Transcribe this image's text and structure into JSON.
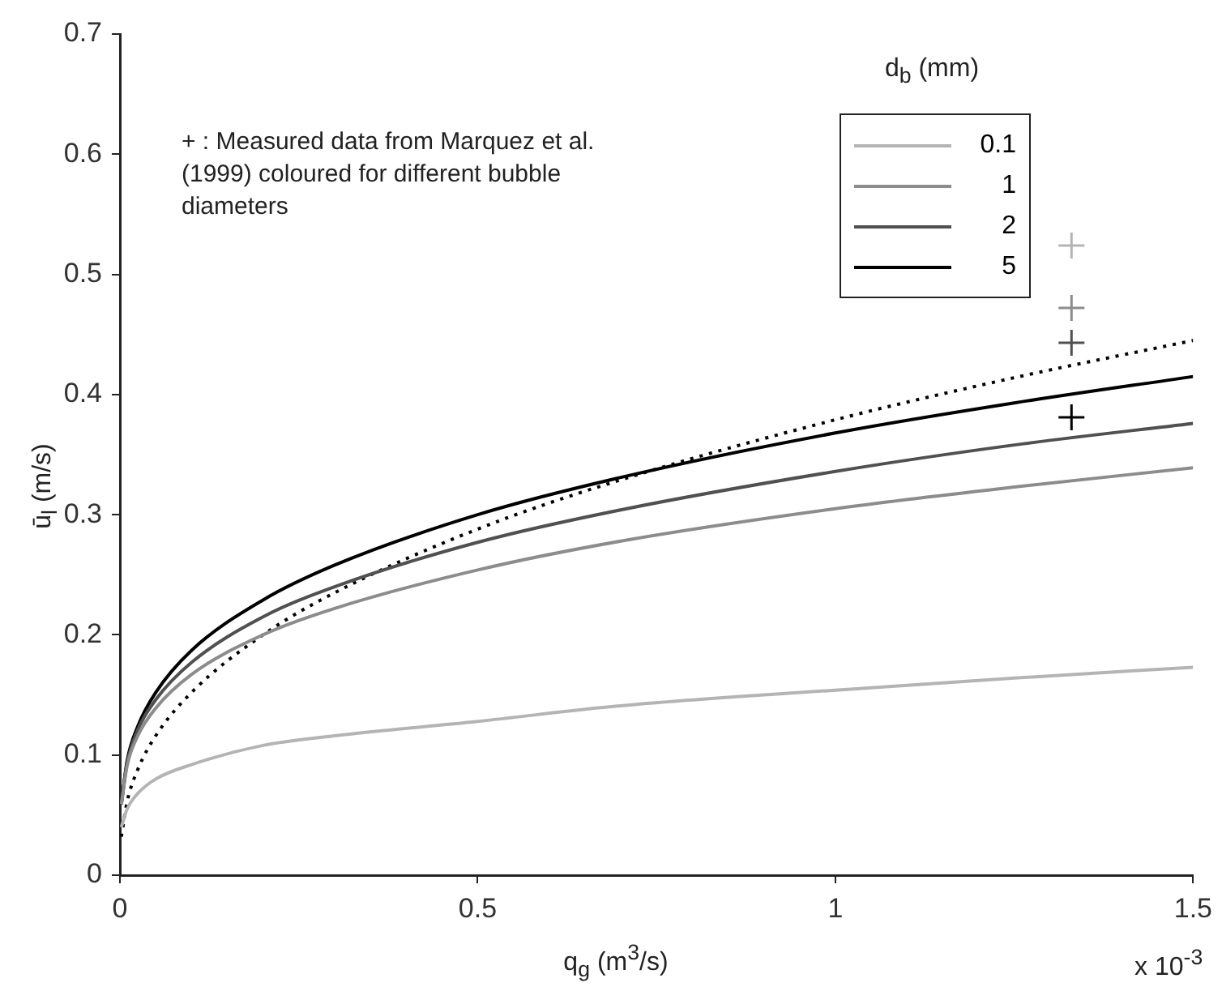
{
  "chart_data": {
    "type": "line",
    "xlabel": "q$_{g}$ (m$^{3}$/s)",
    "ylabel": "ū$_{l}$ (m/s)",
    "legend_title": "d$_{b}$ (mm)",
    "legend": "top right",
    "grid": false,
    "xlim": [
      0,
      1.5
    ],
    "ylim": [
      0,
      0.7
    ],
    "xticks": [
      0,
      0.5,
      1,
      1.5
    ],
    "yticks": [
      0,
      0.1,
      0.2,
      0.3,
      0.4,
      0.5,
      0.6,
      0.7
    ],
    "annotations": [
      "+ : Measured data from Marquez et al. (1999) coloured for different bubble diameters",
      "x 10$^{-3}$"
    ],
    "series": [
      {
        "name": "0.1",
        "color": "#b4b4b4",
        "x": [
          0.002,
          0.01,
          0.025,
          0.05,
          0.1,
          0.2,
          0.3,
          0.5,
          0.7,
          1,
          1.25,
          1.5
        ],
        "values": [
          0.04,
          0.055,
          0.068,
          0.08,
          0.092,
          0.108,
          0.116,
          0.128,
          0.141,
          0.154,
          0.164,
          0.173
        ]
      },
      {
        "name": "1",
        "color": "#8c8c8c",
        "x": [
          0.002,
          0.01,
          0.025,
          0.05,
          0.1,
          0.2,
          0.3,
          0.5,
          0.7,
          1,
          1.25,
          1.5
        ],
        "values": [
          0.059,
          0.091,
          0.116,
          0.139,
          0.167,
          0.2,
          0.222,
          0.254,
          0.278,
          0.305,
          0.323,
          0.339
        ]
      },
      {
        "name": "2",
        "color": "#505050",
        "x": [
          0.002,
          0.01,
          0.025,
          0.05,
          0.1,
          0.2,
          0.3,
          0.5,
          0.7,
          1,
          1.25,
          1.5
        ],
        "values": [
          0.06,
          0.093,
          0.121,
          0.146,
          0.177,
          0.215,
          0.24,
          0.277,
          0.304,
          0.336,
          0.358,
          0.376
        ]
      },
      {
        "name": "5",
        "color": "#000000",
        "x": [
          0.002,
          0.01,
          0.025,
          0.05,
          0.1,
          0.2,
          0.3,
          0.5,
          0.7,
          1,
          1.25,
          1.5
        ],
        "values": [
          0.059,
          0.095,
          0.124,
          0.152,
          0.187,
          0.229,
          0.258,
          0.3,
          0.331,
          0.368,
          0.393,
          0.415
        ]
      },
      {
        "color": "#000000",
        "line_style": "dotted",
        "x": [
          0.002,
          0.01,
          0.025,
          0.05,
          0.1,
          0.2,
          0.3,
          0.5,
          0.7,
          1,
          1.25,
          1.5
        ],
        "values": [
          0.032,
          0.061,
          0.088,
          0.116,
          0.152,
          0.2,
          0.235,
          0.288,
          0.329,
          0.379,
          0.414,
          0.445
        ]
      },
      {
        "type": "scatter",
        "marker": "cross",
        "x": [
          1.33,
          1.33,
          1.33,
          1.33
        ],
        "values": [
          0.524,
          0.472,
          0.443,
          0.381
        ],
        "colors": [
          "#b4b4b4",
          "#8c8c8c",
          "#505050",
          "#000000"
        ]
      }
    ]
  }
}
